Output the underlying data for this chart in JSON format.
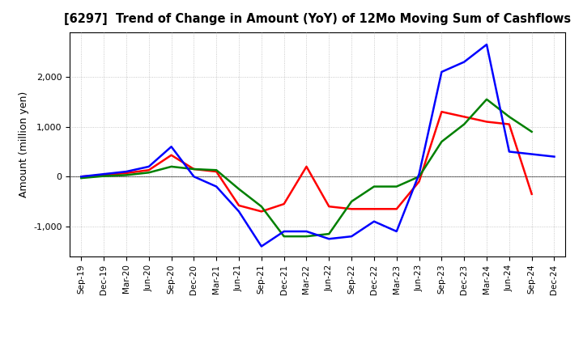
{
  "title": "[6297]  Trend of Change in Amount (YoY) of 12Mo Moving Sum of Cashflows",
  "ylabel": "Amount (million yen)",
  "x_labels": [
    "Sep-19",
    "Dec-19",
    "Mar-20",
    "Jun-20",
    "Sep-20",
    "Dec-20",
    "Mar-21",
    "Jun-21",
    "Sep-21",
    "Dec-21",
    "Mar-22",
    "Jun-22",
    "Sep-22",
    "Dec-22",
    "Mar-23",
    "Jun-23",
    "Sep-23",
    "Dec-23",
    "Mar-24",
    "Jun-24",
    "Sep-24",
    "Dec-24"
  ],
  "operating": [
    0,
    30,
    70,
    130,
    430,
    150,
    100,
    -580,
    -700,
    -550,
    200,
    -600,
    -650,
    -650,
    -650,
    -100,
    1300,
    1200,
    1100,
    1050,
    -350,
    null
  ],
  "investing": [
    -30,
    10,
    30,
    80,
    200,
    150,
    130,
    -250,
    -600,
    -1200,
    -1200,
    -1150,
    -500,
    -200,
    -200,
    0,
    700,
    1050,
    1550,
    1200,
    900,
    null
  ],
  "free": [
    0,
    50,
    100,
    200,
    600,
    0,
    -200,
    -700,
    -1400,
    -1100,
    -1100,
    -1250,
    -1200,
    -900,
    -1100,
    50,
    2100,
    2300,
    2650,
    500,
    450,
    400
  ],
  "operating_color": "#ff0000",
  "investing_color": "#008000",
  "free_color": "#0000ff",
  "ylim_min": -1600,
  "ylim_max": 2900,
  "yticks": [
    -1000,
    0,
    1000,
    2000
  ],
  "background_color": "#ffffff",
  "grid_color": "#bbbbbb"
}
